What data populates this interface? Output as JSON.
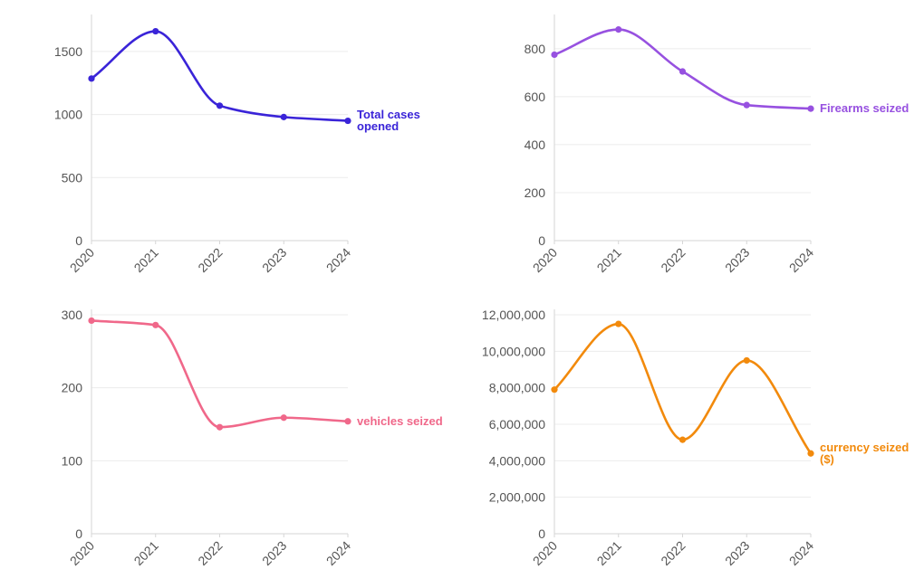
{
  "chart_data": [
    {
      "type": "line",
      "title": "",
      "series_label": [
        "Total cases",
        "opened"
      ],
      "color": "#3a24d8",
      "x": [
        "2020",
        "2021",
        "2022",
        "2023",
        "2024"
      ],
      "values": [
        1285,
        1660,
        1070,
        980,
        950
      ],
      "ylim": [
        0,
        1750
      ],
      "yticks": [
        0,
        500,
        1000,
        1500
      ],
      "ytick_labels": [
        "0",
        "500",
        "1000",
        "1500"
      ],
      "xlabel": "",
      "ylabel": ""
    },
    {
      "type": "line",
      "title": "",
      "series_label": [
        "Firearms seized"
      ],
      "color": "#9751e0",
      "x": [
        "2020",
        "2021",
        "2022",
        "2023",
        "2024"
      ],
      "values": [
        775,
        880,
        705,
        565,
        550
      ],
      "ylim": [
        0,
        920
      ],
      "yticks": [
        0,
        200,
        400,
        600,
        800
      ],
      "ytick_labels": [
        "0",
        "200",
        "400",
        "600",
        "800"
      ],
      "xlabel": "",
      "ylabel": ""
    },
    {
      "type": "line",
      "title": "",
      "series_label": [
        "vehicles seized"
      ],
      "color": "#f0688a",
      "x": [
        "2020",
        "2021",
        "2022",
        "2023",
        "2024"
      ],
      "values": [
        292,
        286,
        146,
        159,
        154
      ],
      "ylim": [
        0,
        300
      ],
      "yticks": [
        0,
        100,
        200,
        300
      ],
      "ytick_labels": [
        "0",
        "100",
        "200",
        "300"
      ],
      "xlabel": "",
      "ylabel": ""
    },
    {
      "type": "line",
      "title": "",
      "series_label": [
        "currency seized",
        "($)"
      ],
      "color": "#f28a0c",
      "x": [
        "2020",
        "2021",
        "2022",
        "2023",
        "2024"
      ],
      "values": [
        7900000,
        11500000,
        5150000,
        9500000,
        4400000
      ],
      "ylim": [
        0,
        12000000
      ],
      "yticks": [
        0,
        2000000,
        4000000,
        6000000,
        8000000,
        10000000,
        12000000
      ],
      "ytick_labels": [
        "0",
        "2,000,000",
        "4,000,000",
        "6,000,000",
        "8,000,000",
        "10,000,000",
        "12,000,000"
      ],
      "xlabel": "",
      "ylabel": ""
    }
  ]
}
